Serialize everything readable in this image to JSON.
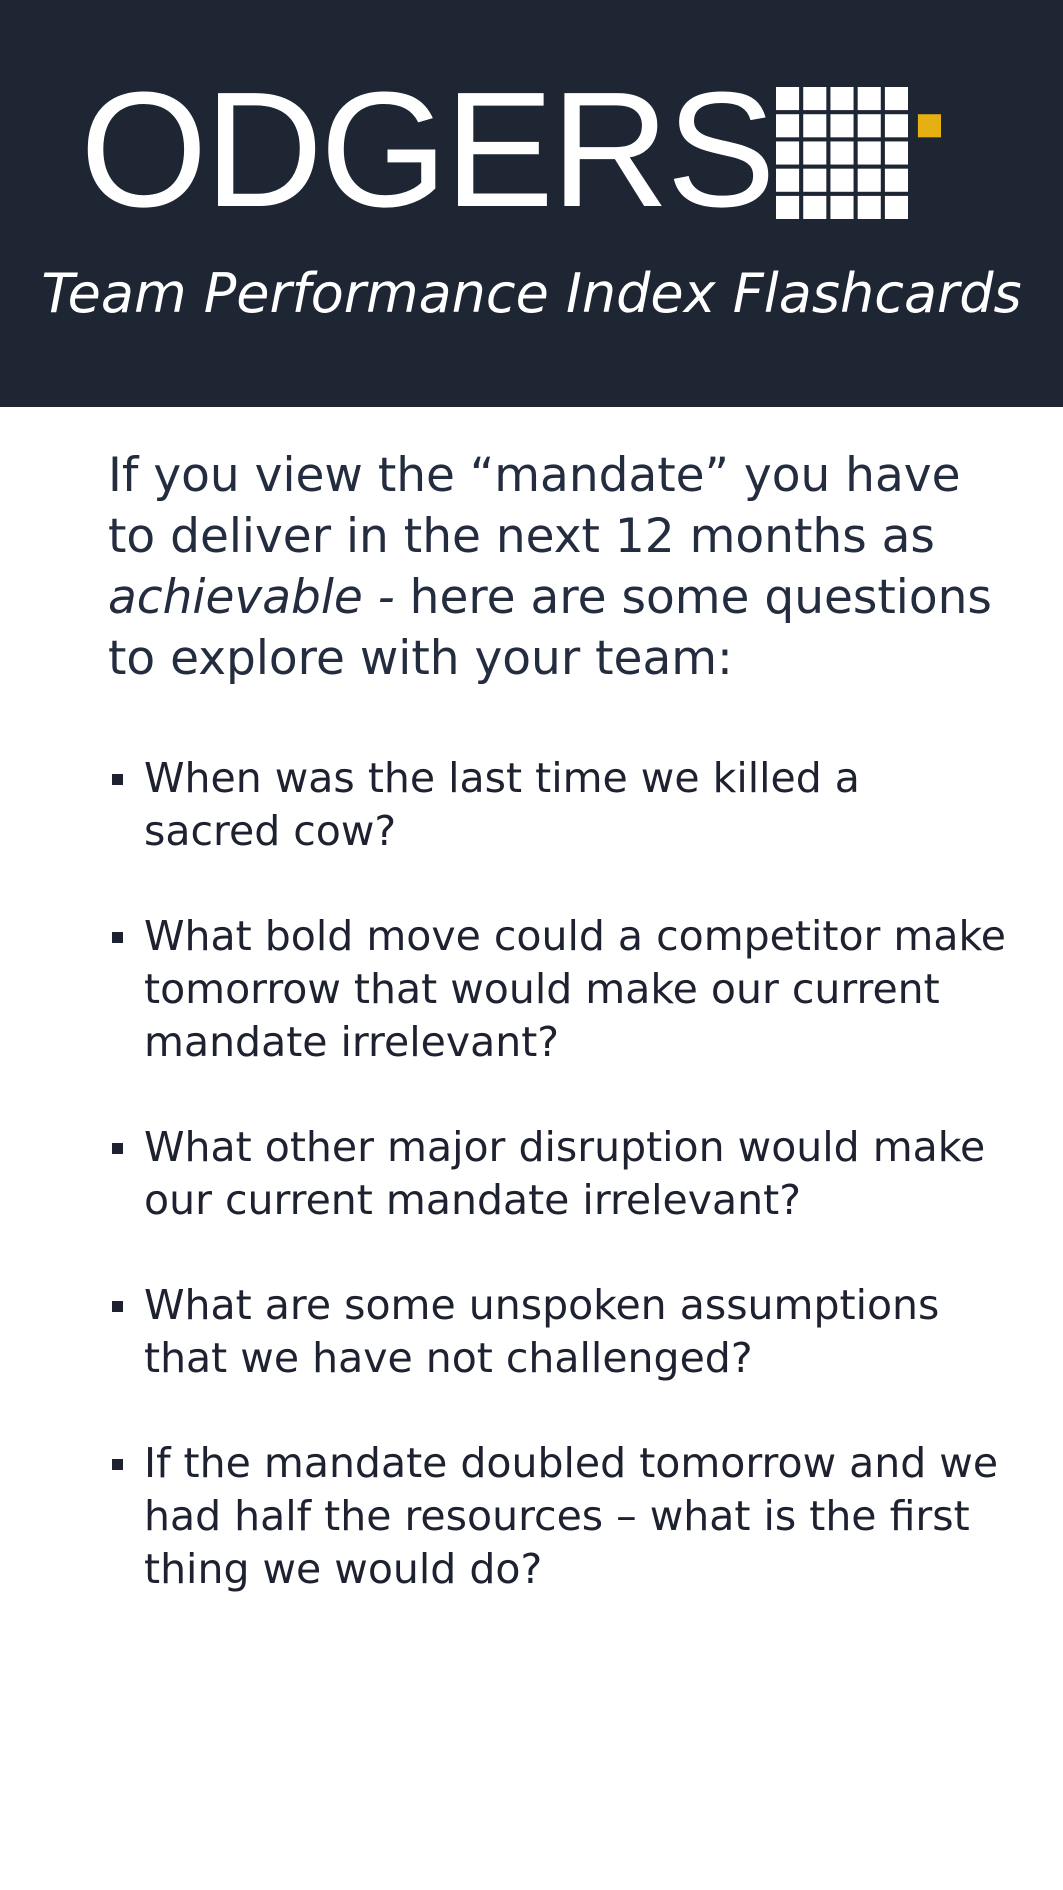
{
  "header": {
    "brand_name": "ODGERS",
    "subtitle": "Team Performance Index Flashcards",
    "logo": {
      "grid_color": "#ffffff",
      "accent_color": "#e6b012",
      "background": "#1e2533"
    }
  },
  "intro": {
    "part1": "If you view the “mandate” you have to deliver in the next 12 months as ",
    "emphasis": "achievable -",
    "part2": " here are some questions to explore with your team:"
  },
  "questions": [
    "When was the last time we killed a sacred cow?",
    "What bold move could a competitor make tomorrow that would make our current mandate irrelevant?",
    "What other major disruption would make our current mandate irrelevant?",
    "What are some unspoken assumptions that we have not challenged?",
    "If the mandate doubled tomorrow and we had half the resources – what is the first thing we would do?"
  ]
}
